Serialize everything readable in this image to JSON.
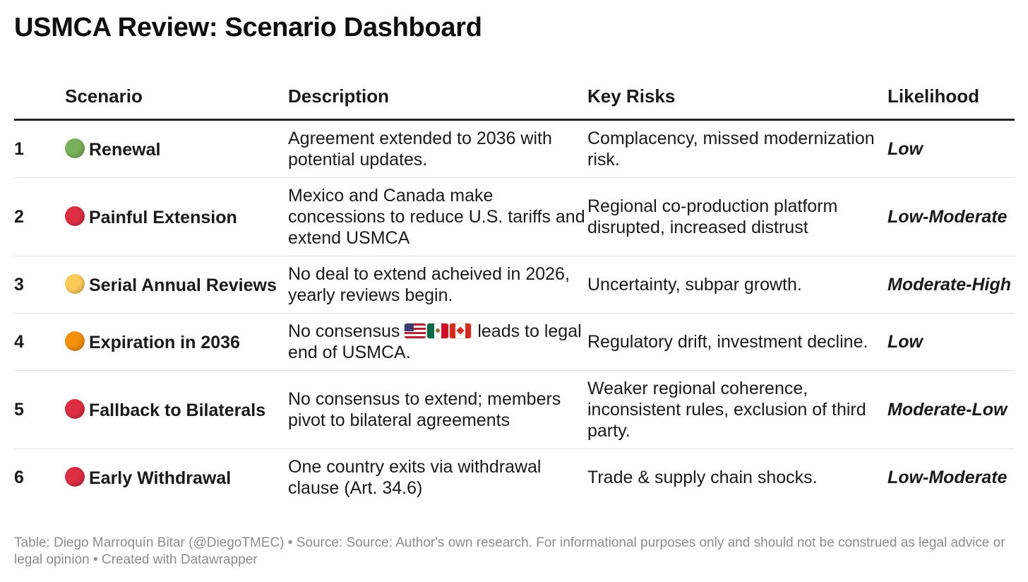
{
  "title": "USMCA Review: Scenario Dashboard",
  "columns": {
    "num": "",
    "scenario": "Scenario",
    "description": "Description",
    "risks": "Key Risks",
    "likelihood": "Likelihood"
  },
  "rows": [
    {
      "num": "1",
      "indicator": "green-circle-icon",
      "indicator_color": "#78b159",
      "scenario": "Renewal",
      "description": "Agreement extended to 2036 with potential updates.",
      "risks": "Complacency, missed modernization risk.",
      "likelihood": "Low"
    },
    {
      "num": "2",
      "indicator": "red-circle-icon",
      "indicator_color": "#dd2e44",
      "scenario": "Painful Extension",
      "description": "Mexico and Canada make concessions to reduce U.S. tariffs and extend USMCA",
      "risks": "Regional co-production platform disrupted, increased distrust",
      "likelihood": "Low-Moderate"
    },
    {
      "num": "3",
      "indicator": "yellow-circle-icon",
      "indicator_color": "#fdcb58",
      "scenario": "Serial Annual Reviews",
      "description": "No deal to extend acheived in 2026, yearly reviews begin.",
      "risks": "Uncertainty, subpar growth.",
      "likelihood": "Moderate-High"
    },
    {
      "num": "4",
      "indicator": "orange-circle-icon",
      "indicator_color": "#f4900c",
      "scenario": "Expiration in 2036",
      "description_before": "No consensus",
      "description_flags": [
        "us-flag-icon",
        "mexico-flag-icon",
        "canada-flag-icon"
      ],
      "description_after": "leads to legal end of USMCA.",
      "risks": "Regulatory drift, investment decline.",
      "likelihood": "Low"
    },
    {
      "num": "5",
      "indicator": "red-circle-icon",
      "indicator_color": "#dd2e44",
      "scenario": "Fallback to Bilaterals",
      "description": "No consensus to extend; members pivot to bilateral agreements",
      "risks": "Weaker regional coherence, inconsistent rules, exclusion of third party.",
      "likelihood": "Moderate-Low"
    },
    {
      "num": "6",
      "indicator": "red-circle-icon",
      "indicator_color": "#dd2e44",
      "scenario": "Early Withdrawal",
      "description": "One country exits via withdrawal clause (Art. 34.6)",
      "risks": "Trade & supply chain shocks.",
      "likelihood": "Low-Moderate"
    }
  ],
  "footer": "Table: Diego Marroquín Bitar (@DiegoTMEC) • Source: Source: Author's own research. For informational purposes only and should not be construed as legal advice or legal opinion • Created with Datawrapper",
  "chart_data": {
    "type": "table",
    "title": "USMCA Review: Scenario Dashboard",
    "columns": [
      "",
      "Scenario",
      "Description",
      "Key Risks",
      "Likelihood"
    ],
    "rows": [
      [
        "1",
        "Renewal",
        "Agreement extended to 2036 with potential updates.",
        "Complacency, missed modernization risk.",
        "Low"
      ],
      [
        "2",
        "Painful Extension",
        "Mexico and Canada make concessions to reduce U.S. tariffs and extend USMCA",
        "Regional co-production platform disrupted, increased distrust",
        "Low-Moderate"
      ],
      [
        "3",
        "Serial Annual Reviews",
        "No deal to extend acheived in 2026, yearly reviews begin.",
        "Uncertainty, subpar growth.",
        "Moderate-High"
      ],
      [
        "4",
        "Expiration in 2036",
        "No consensus leads to legal end of USMCA.",
        "Regulatory drift, investment decline.",
        "Low"
      ],
      [
        "5",
        "Fallback to Bilaterals",
        "No consensus to extend; members pivot to bilateral agreements",
        "Weaker regional coherence, inconsistent rules, exclusion of third party.",
        "Moderate-Low"
      ],
      [
        "6",
        "Early Withdrawal",
        "One country exits via withdrawal clause (Art. 34.6)",
        "Trade & supply chain shocks.",
        "Low-Moderate"
      ]
    ]
  }
}
